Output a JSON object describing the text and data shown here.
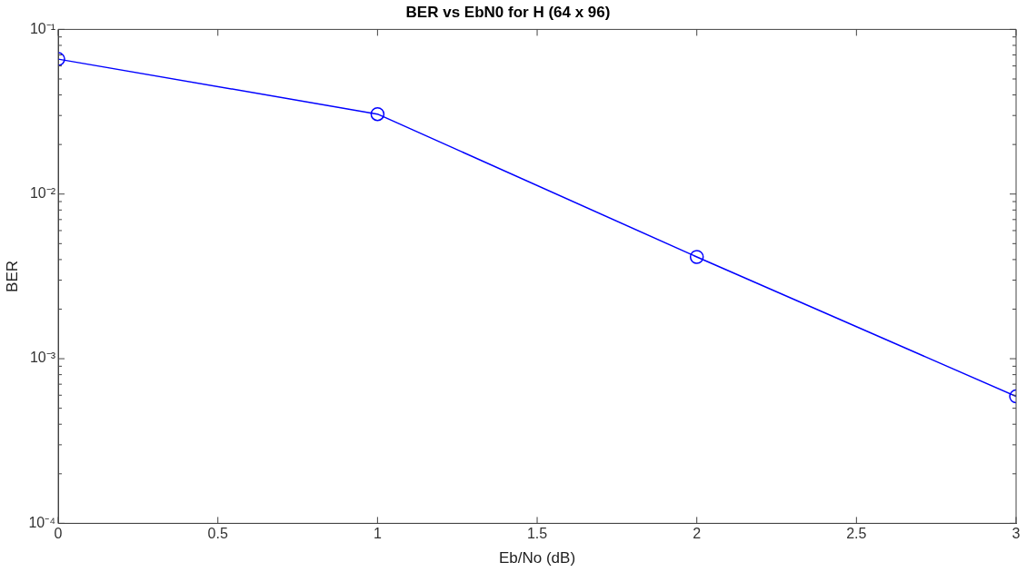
{
  "chart_data": {
    "type": "line",
    "title": "BER vs EbN0 for H (64 x 96)",
    "xlabel": "Eb/No (dB)",
    "ylabel": "BER",
    "x": [
      0,
      1,
      2,
      3
    ],
    "series": [
      {
        "color": "#0000ff",
        "values": [
          0.066,
          0.0306,
          0.00415,
          0.00059
        ]
      }
    ],
    "log": "y",
    "marker": "circle",
    "line_style": "solid",
    "grid": false,
    "legend": false,
    "xlim": [
      0,
      3
    ],
    "xticks": [
      0,
      0.5,
      1,
      1.5,
      2,
      2.5,
      3
    ],
    "ylim": [
      0.0001,
      0.1
    ],
    "yticks": [
      {
        "value": 0.0001,
        "label": "10⁻⁴"
      },
      {
        "value": 0.001,
        "label": "10⁻³"
      },
      {
        "value": 0.01,
        "label": "10⁻²"
      },
      {
        "value": 0.1,
        "label": "10⁻¹"
      }
    ]
  }
}
